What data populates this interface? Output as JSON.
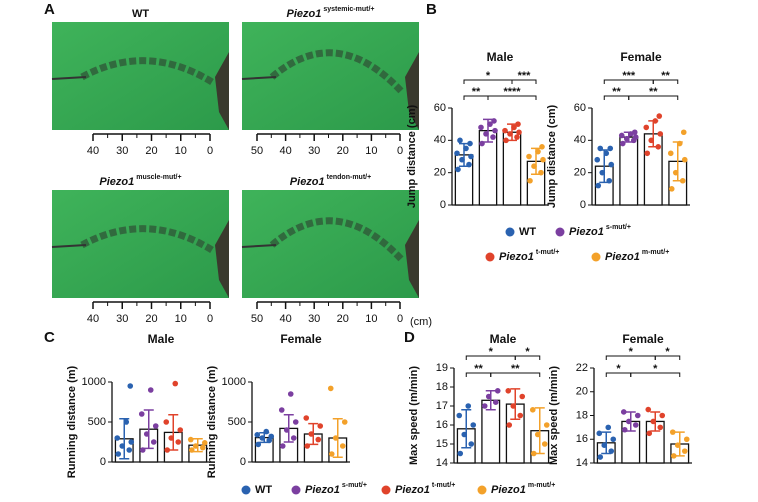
{
  "panels": [
    "A",
    "B",
    "C",
    "D"
  ],
  "groups": [
    {
      "name": "WT",
      "color": "#2a62b0"
    },
    {
      "name": "Piezo1",
      "sup": "s-mut/+",
      "color": "#7b3fa0"
    },
    {
      "name": "Piezo1",
      "sup": "t-mut/+",
      "color": "#e0432b"
    },
    {
      "name": "Piezo1",
      "sup": "m-mut/+",
      "color": "#f3a12a"
    }
  ],
  "photos": [
    {
      "label": "WT",
      "xlim": [
        40,
        0
      ],
      "xticks": [
        40,
        30,
        20,
        10,
        0
      ]
    },
    {
      "label": "Piezo1",
      "sup": "systemic-mut/+",
      "xlim": [
        50,
        0
      ],
      "xticks": [
        50,
        40,
        30,
        20,
        10,
        0
      ]
    },
    {
      "label": "Piezo1",
      "sup": "muscle-mut/+",
      "xlim": [
        40,
        0
      ],
      "xticks": [
        40,
        30,
        20,
        10,
        0
      ]
    },
    {
      "label": "Piezo1",
      "sup": "tendon-mut/+",
      "xlim": [
        50,
        0
      ],
      "xticks": [
        50,
        40,
        30,
        20,
        10,
        0
      ]
    }
  ],
  "unit": "(cm)",
  "chart_data": [
    {
      "type": "bar",
      "title": "Male",
      "ylabel": "Jump distance (cm)",
      "ylim": [
        0,
        60
      ],
      "yticks": [
        0,
        20,
        40,
        60
      ],
      "values": [
        31,
        46,
        45,
        27
      ],
      "errors": [
        7,
        7,
        5,
        8
      ],
      "points": [
        [
          22,
          25,
          28,
          30,
          32,
          35,
          38,
          40
        ],
        [
          38,
          42,
          44,
          46,
          48,
          50,
          52
        ],
        [
          40,
          42,
          44,
          45,
          46,
          48,
          50
        ],
        [
          15,
          20,
          24,
          28,
          30,
          33,
          36
        ]
      ],
      "significance": [
        "*",
        "***",
        "**",
        "****"
      ]
    },
    {
      "type": "bar",
      "title": "Female",
      "ylabel": "Jump distance (cm)",
      "ylim": [
        0,
        60
      ],
      "yticks": [
        0,
        20,
        40,
        60
      ],
      "values": [
        24,
        42,
        44,
        27
      ],
      "errors": [
        10,
        3,
        8,
        12
      ],
      "points": [
        [
          12,
          15,
          20,
          25,
          28,
          32,
          35,
          35
        ],
        [
          38,
          40,
          41,
          42,
          43,
          44,
          45
        ],
        [
          32,
          36,
          40,
          44,
          48,
          52,
          55
        ],
        [
          10,
          15,
          20,
          28,
          32,
          38,
          45
        ]
      ],
      "significance": [
        "***",
        "**",
        "**",
        "**"
      ]
    },
    {
      "type": "bar",
      "title": "Male",
      "ylabel": "Running distance (m)",
      "ylim": [
        0,
        1000
      ],
      "yticks": [
        0,
        500,
        1000
      ],
      "values": [
        290,
        410,
        370,
        210
      ],
      "errors": [
        250,
        240,
        220,
        80
      ],
      "points": [
        [
          100,
          150,
          200,
          250,
          300,
          500,
          950
        ],
        [
          150,
          250,
          350,
          450,
          600,
          900
        ],
        [
          150,
          250,
          300,
          400,
          500,
          980
        ],
        [
          150,
          180,
          200,
          240,
          280
        ]
      ]
    },
    {
      "type": "bar",
      "title": "Female",
      "ylabel": "Running distance (m)",
      "ylim": [
        0,
        1000
      ],
      "yticks": [
        0,
        500,
        1000
      ],
      "values": [
        305,
        420,
        350,
        300
      ],
      "errors": [
        60,
        170,
        130,
        240
      ],
      "points": [
        [
          220,
          270,
          300,
          320,
          340,
          380
        ],
        [
          200,
          300,
          400,
          500,
          650,
          850
        ],
        [
          200,
          280,
          350,
          450,
          550
        ],
        [
          100,
          200,
          300,
          500,
          920
        ]
      ]
    },
    {
      "type": "bar",
      "title": "Male",
      "ylabel": "Max speed (m/min)",
      "ylim": [
        14,
        19
      ],
      "yticks": [
        14,
        15,
        16,
        17,
        18,
        19
      ],
      "values": [
        15.8,
        17.3,
        17.1,
        15.7
      ],
      "errors": [
        1,
        0.5,
        0.8,
        1.2
      ],
      "points": [
        [
          14.5,
          15,
          15.5,
          16,
          16.5,
          17
        ],
        [
          17,
          17.2,
          17.5,
          17.8
        ],
        [
          16,
          16.5,
          17,
          17.5,
          17.8
        ],
        [
          14.5,
          15,
          15.5,
          16,
          16.8
        ]
      ],
      "significance": [
        "*",
        "*",
        "**",
        "**"
      ]
    },
    {
      "type": "bar",
      "title": "Female",
      "ylabel": "Max speed (m/min)",
      "ylim": [
        14,
        22
      ],
      "yticks": [
        14,
        16,
        18,
        20,
        22
      ],
      "values": [
        15.7,
        17.5,
        17.5,
        15.6
      ],
      "errors": [
        0.9,
        0.8,
        0.8,
        1
      ],
      "points": [
        [
          14.5,
          15,
          15.5,
          16,
          16.5,
          17
        ],
        [
          16.8,
          17.2,
          17.5,
          18,
          18.3
        ],
        [
          16.5,
          17,
          17.5,
          18,
          18.5
        ],
        [
          14.6,
          15,
          15.5,
          16,
          16.6
        ]
      ],
      "significance": [
        "*",
        "*",
        "*",
        "*"
      ]
    }
  ]
}
